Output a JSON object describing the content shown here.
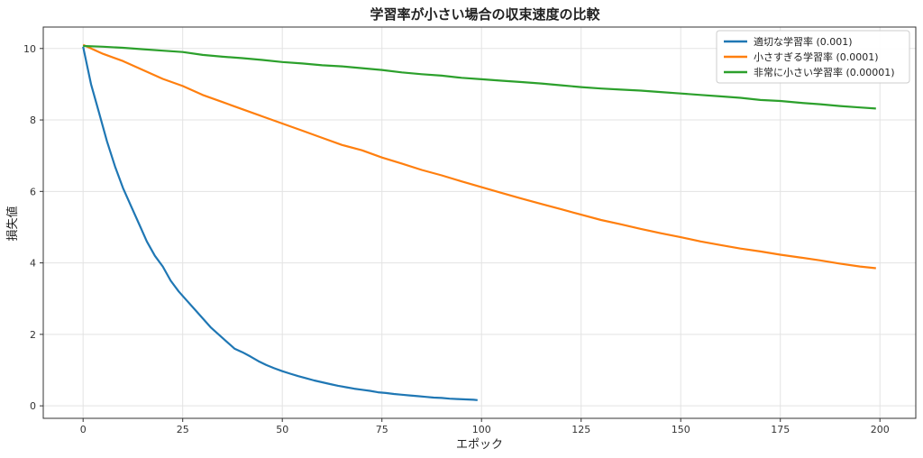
{
  "chart_data": {
    "type": "line",
    "title": "学習率が小さい場合の収束速度の比較",
    "xlabel": "エポック",
    "ylabel": "損失値",
    "xlim": [
      -10,
      209
    ],
    "ylim": [
      -0.35,
      10.6
    ],
    "xticks": [
      0,
      25,
      50,
      75,
      100,
      125,
      150,
      175,
      200
    ],
    "yticks": [
      0,
      2,
      4,
      6,
      8,
      10
    ],
    "grid": true,
    "legend_position": "top-right",
    "series": [
      {
        "name": "適切な学習率 (0.001)",
        "color": "#1f77b4",
        "x": [
          0,
          2,
          4,
          6,
          8,
          10,
          12,
          14,
          16,
          18,
          20,
          22,
          24,
          26,
          28,
          30,
          32,
          34,
          36,
          38,
          40,
          42,
          44,
          46,
          48,
          50,
          52,
          54,
          56,
          58,
          60,
          62,
          64,
          66,
          68,
          70,
          72,
          74,
          76,
          78,
          80,
          82,
          84,
          86,
          88,
          90,
          92,
          94,
          96,
          98,
          99
        ],
        "y": [
          10.05,
          9.0,
          8.2,
          7.4,
          6.7,
          6.1,
          5.6,
          5.1,
          4.6,
          4.2,
          3.9,
          3.5,
          3.2,
          2.95,
          2.7,
          2.45,
          2.2,
          2.0,
          1.8,
          1.6,
          1.5,
          1.38,
          1.25,
          1.14,
          1.05,
          0.97,
          0.9,
          0.83,
          0.77,
          0.71,
          0.66,
          0.61,
          0.56,
          0.52,
          0.48,
          0.45,
          0.42,
          0.38,
          0.36,
          0.33,
          0.31,
          0.29,
          0.27,
          0.25,
          0.23,
          0.22,
          0.2,
          0.19,
          0.18,
          0.17,
          0.16
        ]
      },
      {
        "name": "小さすぎる学習率 (0.0001)",
        "color": "#ff7f0e",
        "x": [
          0,
          5,
          10,
          15,
          20,
          25,
          30,
          35,
          40,
          45,
          50,
          55,
          60,
          65,
          70,
          75,
          80,
          85,
          90,
          95,
          100,
          105,
          110,
          115,
          120,
          125,
          130,
          135,
          140,
          145,
          150,
          155,
          160,
          165,
          170,
          175,
          180,
          185,
          190,
          195,
          199
        ],
        "y": [
          10.1,
          9.85,
          9.65,
          9.4,
          9.15,
          8.95,
          8.7,
          8.5,
          8.3,
          8.1,
          7.9,
          7.7,
          7.5,
          7.3,
          7.15,
          6.95,
          6.78,
          6.6,
          6.45,
          6.28,
          6.12,
          5.96,
          5.8,
          5.65,
          5.5,
          5.35,
          5.2,
          5.08,
          4.95,
          4.83,
          4.72,
          4.6,
          4.5,
          4.4,
          4.32,
          4.23,
          4.15,
          4.07,
          3.98,
          3.9,
          3.85
        ]
      },
      {
        "name": "非常に小さい学習率 (0.00001)",
        "color": "#2ca02c",
        "x": [
          0,
          5,
          10,
          15,
          20,
          25,
          30,
          35,
          40,
          45,
          50,
          55,
          60,
          65,
          70,
          75,
          80,
          85,
          90,
          95,
          100,
          105,
          110,
          115,
          120,
          125,
          130,
          135,
          140,
          145,
          150,
          155,
          160,
          165,
          170,
          175,
          180,
          185,
          190,
          195,
          199
        ],
        "y": [
          10.07,
          10.05,
          10.02,
          9.98,
          9.94,
          9.9,
          9.82,
          9.77,
          9.73,
          9.68,
          9.62,
          9.58,
          9.53,
          9.5,
          9.45,
          9.4,
          9.33,
          9.28,
          9.24,
          9.18,
          9.14,
          9.1,
          9.06,
          9.02,
          8.97,
          8.92,
          8.88,
          8.85,
          8.82,
          8.78,
          8.74,
          8.7,
          8.66,
          8.62,
          8.56,
          8.53,
          8.48,
          8.44,
          8.39,
          8.35,
          8.32
        ]
      }
    ]
  }
}
